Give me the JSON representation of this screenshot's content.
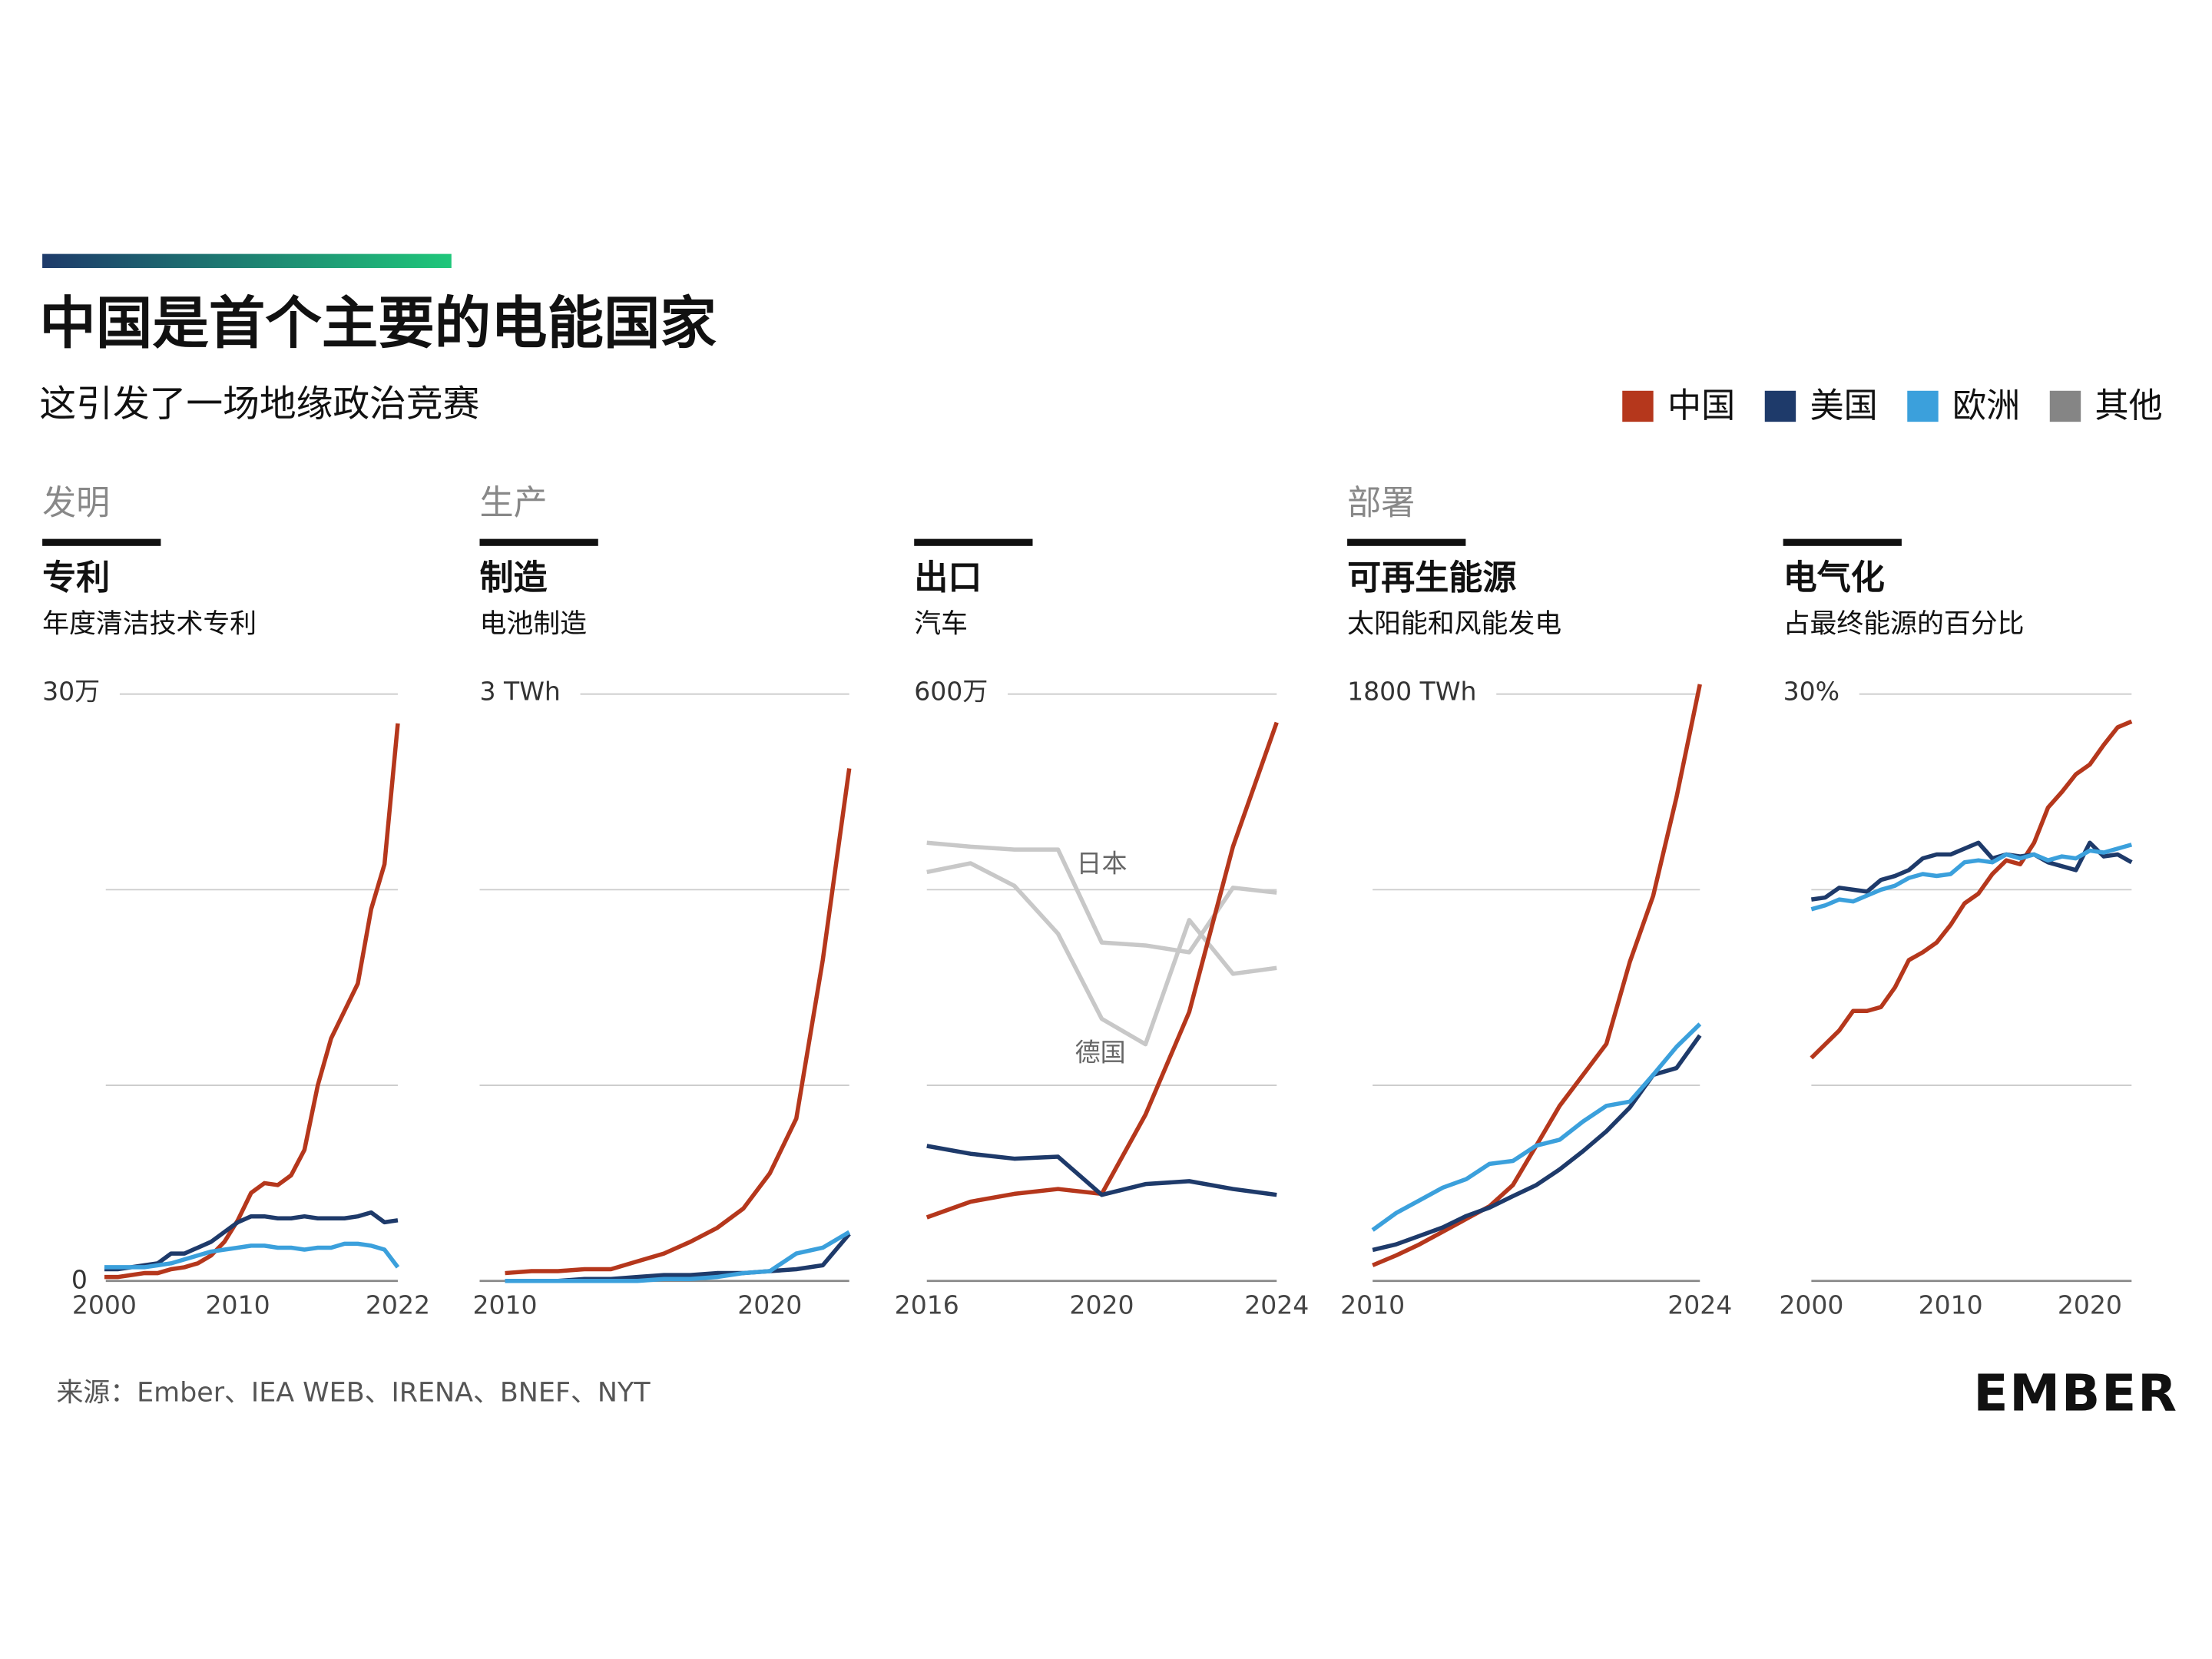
{
  "title": "中国是首个主要的电能国家",
  "subtitle": "这引发了一场地缘政治竞赛",
  "legend": [
    {
      "name": "中国",
      "color": "#b5371c"
    },
    {
      "name": "美国",
      "color": "#1e3a6a"
    },
    {
      "name": "欧洲",
      "color": "#3ba0dc"
    },
    {
      "name": "其他",
      "color": "#858585"
    }
  ],
  "source": "来源：Ember、IEA WEB、IRENA、BNEF、NYT",
  "logo": "EMBER",
  "chart_data": [
    {
      "type": "line",
      "section": "发明",
      "title": "专利",
      "subtitle": "年度清洁技术专利",
      "x": [
        2000,
        2001,
        2002,
        2003,
        2004,
        2005,
        2006,
        2007,
        2008,
        2009,
        2010,
        2011,
        2012,
        2013,
        2014,
        2015,
        2016,
        2017,
        2018,
        2019,
        2020,
        2021,
        2022
      ],
      "xlim": [
        2000,
        2022
      ],
      "xticks": [
        2000,
        2010,
        2022
      ],
      "ylim": [
        0,
        300000
      ],
      "yticks": [
        0,
        {
          "value": 300000,
          "label": "30万"
        }
      ],
      "gridlines": [
        100000,
        200000
      ],
      "series": [
        {
          "color": "#b5371c",
          "values": [
            2000,
            2000,
            3000,
            4000,
            4000,
            6000,
            7000,
            9000,
            13000,
            20000,
            31000,
            45000,
            50000,
            49000,
            54000,
            67000,
            100000,
            124000,
            138000,
            152000,
            190000,
            213000,
            285000
          ]
        },
        {
          "color": "#1e3a6a",
          "values": [
            6000,
            6000,
            7000,
            8000,
            9000,
            14000,
            14000,
            17000,
            20000,
            25000,
            30000,
            33000,
            33000,
            32000,
            32000,
            33000,
            32000,
            32000,
            32000,
            33000,
            35000,
            30000,
            31000
          ]
        },
        {
          "color": "#3ba0dc",
          "values": [
            7000,
            7000,
            7000,
            7000,
            8000,
            9000,
            11000,
            13000,
            15000,
            16000,
            17000,
            18000,
            18000,
            17000,
            17000,
            16000,
            17000,
            17000,
            19000,
            19000,
            18000,
            16000,
            7000
          ]
        }
      ]
    },
    {
      "type": "line",
      "section": "生产",
      "title": "制造",
      "subtitle": "电池制造",
      "x": [
        2010,
        2011,
        2012,
        2013,
        2014,
        2015,
        2016,
        2017,
        2018,
        2019,
        2020,
        2021,
        2022,
        2023
      ],
      "xlim": [
        2010,
        2023
      ],
      "xticks": [
        2010,
        2020
      ],
      "ylim": [
        0,
        3
      ],
      "yticks": [
        {
          "value": 3,
          "label": "3 TWh"
        }
      ],
      "gridlines": [
        0,
        1,
        2
      ],
      "series": [
        {
          "color": "#b5371c",
          "values": [
            0.04,
            0.05,
            0.05,
            0.06,
            0.06,
            0.1,
            0.14,
            0.2,
            0.27,
            0.37,
            0.55,
            0.83,
            1.64,
            2.62
          ]
        },
        {
          "color": "#1e3a6a",
          "values": [
            0,
            0,
            0,
            0.01,
            0.01,
            0.02,
            0.03,
            0.03,
            0.04,
            0.04,
            0.05,
            0.06,
            0.08,
            0.24
          ]
        },
        {
          "color": "#3ba0dc",
          "values": [
            0,
            0,
            0,
            0,
            0,
            0,
            0.01,
            0.01,
            0.02,
            0.04,
            0.05,
            0.14,
            0.17,
            0.25
          ]
        }
      ]
    },
    {
      "type": "line",
      "title": "出口",
      "subtitle": "汽车",
      "x": [
        2016,
        2017,
        2018,
        2019,
        2020,
        2021,
        2022,
        2023,
        2024
      ],
      "xlim": [
        2016,
        2024
      ],
      "xticks": [
        2016,
        2020,
        2024
      ],
      "ylim": [
        0,
        6000000
      ],
      "yticks": [
        {
          "value": 6000000,
          "label": "600万"
        }
      ],
      "gridlines": [
        0,
        2000000,
        4000000
      ],
      "series": [
        {
          "color": "#b5371c",
          "values": [
            650000,
            810000,
            890000,
            940000,
            890000,
            1700000,
            2750000,
            4440000,
            5710000
          ]
        },
        {
          "color": "#1e3a6a",
          "values": [
            1380000,
            1300000,
            1250000,
            1270000,
            880000,
            990000,
            1020000,
            940000,
            880000
          ]
        },
        {
          "name": "日本",
          "color": "#c8c8c8",
          "values": [
            4480000,
            4440000,
            4410000,
            4410000,
            3460000,
            3430000,
            3360000,
            4020000,
            3970000
          ]
        },
        {
          "name": "德国",
          "color": "#c8c8c8",
          "values": [
            4180000,
            4270000,
            4040000,
            3550000,
            2680000,
            2420000,
            3690000,
            3140000,
            3200000
          ]
        }
      ]
    },
    {
      "type": "line",
      "section": "部署",
      "title": "可再生能源",
      "subtitle": "太阳能和风能发电",
      "x": [
        2010,
        2011,
        2012,
        2013,
        2014,
        2015,
        2016,
        2017,
        2018,
        2019,
        2020,
        2021,
        2022,
        2023,
        2024
      ],
      "xlim": [
        2010,
        2024
      ],
      "xticks": [
        2010,
        2024
      ],
      "ylim": [
        0,
        1800
      ],
      "yticks": [
        {
          "value": 1800,
          "label": "1800 TWh"
        }
      ],
      "gridlines": [
        0,
        600,
        1200
      ],
      "series": [
        {
          "color": "#b5371c",
          "values": [
            48,
            78,
            112,
            151,
            190,
            229,
            294,
            415,
            537,
            632,
            727,
            978,
            1181,
            1484,
            1830
          ]
        },
        {
          "color": "#1e3a6a",
          "values": [
            95,
            112,
            138,
            164,
            199,
            225,
            260,
            294,
            342,
            398,
            459,
            532,
            632,
            653,
            753
          ]
        },
        {
          "color": "#3ba0dc",
          "values": [
            156,
            208,
            247,
            286,
            312,
            359,
            368,
            415,
            433,
            489,
            537,
            550,
            632,
            718,
            788
          ]
        }
      ]
    },
    {
      "type": "line",
      "title": "电气化",
      "subtitle": "占最终能源的百分比",
      "x": [
        2000,
        2001,
        2002,
        2003,
        2004,
        2005,
        2006,
        2007,
        2008,
        2009,
        2010,
        2011,
        2012,
        2013,
        2014,
        2015,
        2016,
        2017,
        2018,
        2019,
        2020,
        2021,
        2022,
        2023
      ],
      "xlim": [
        2000,
        2023
      ],
      "xticks": [
        2000,
        2010,
        2020
      ],
      "ylim": [
        0,
        30
      ],
      "yticks": [
        {
          "value": 30,
          "label": "30%"
        }
      ],
      "gridlines": [
        0,
        10,
        20
      ],
      "series": [
        {
          "color": "#b5371c",
          "values": [
            11.4,
            12.1,
            12.8,
            13.8,
            13.8,
            14.0,
            15.0,
            16.4,
            16.8,
            17.3,
            18.2,
            19.3,
            19.8,
            20.8,
            21.5,
            21.3,
            22.4,
            24.2,
            25.0,
            25.9,
            26.4,
            27.4,
            28.3,
            28.6
          ]
        },
        {
          "color": "#1e3a6a",
          "values": [
            19.5,
            19.6,
            20.1,
            20.0,
            19.9,
            20.5,
            20.7,
            21.0,
            21.6,
            21.8,
            21.8,
            22.1,
            22.4,
            21.6,
            21.8,
            21.7,
            21.8,
            21.4,
            21.2,
            21.0,
            22.4,
            21.7,
            21.8,
            21.4
          ]
        },
        {
          "color": "#3ba0dc",
          "values": [
            19.0,
            19.2,
            19.5,
            19.4,
            19.7,
            20.0,
            20.2,
            20.6,
            20.8,
            20.7,
            20.8,
            21.4,
            21.5,
            21.4,
            21.8,
            21.6,
            21.8,
            21.5,
            21.7,
            21.6,
            22.0,
            21.9,
            22.1,
            22.3
          ]
        }
      ]
    }
  ]
}
